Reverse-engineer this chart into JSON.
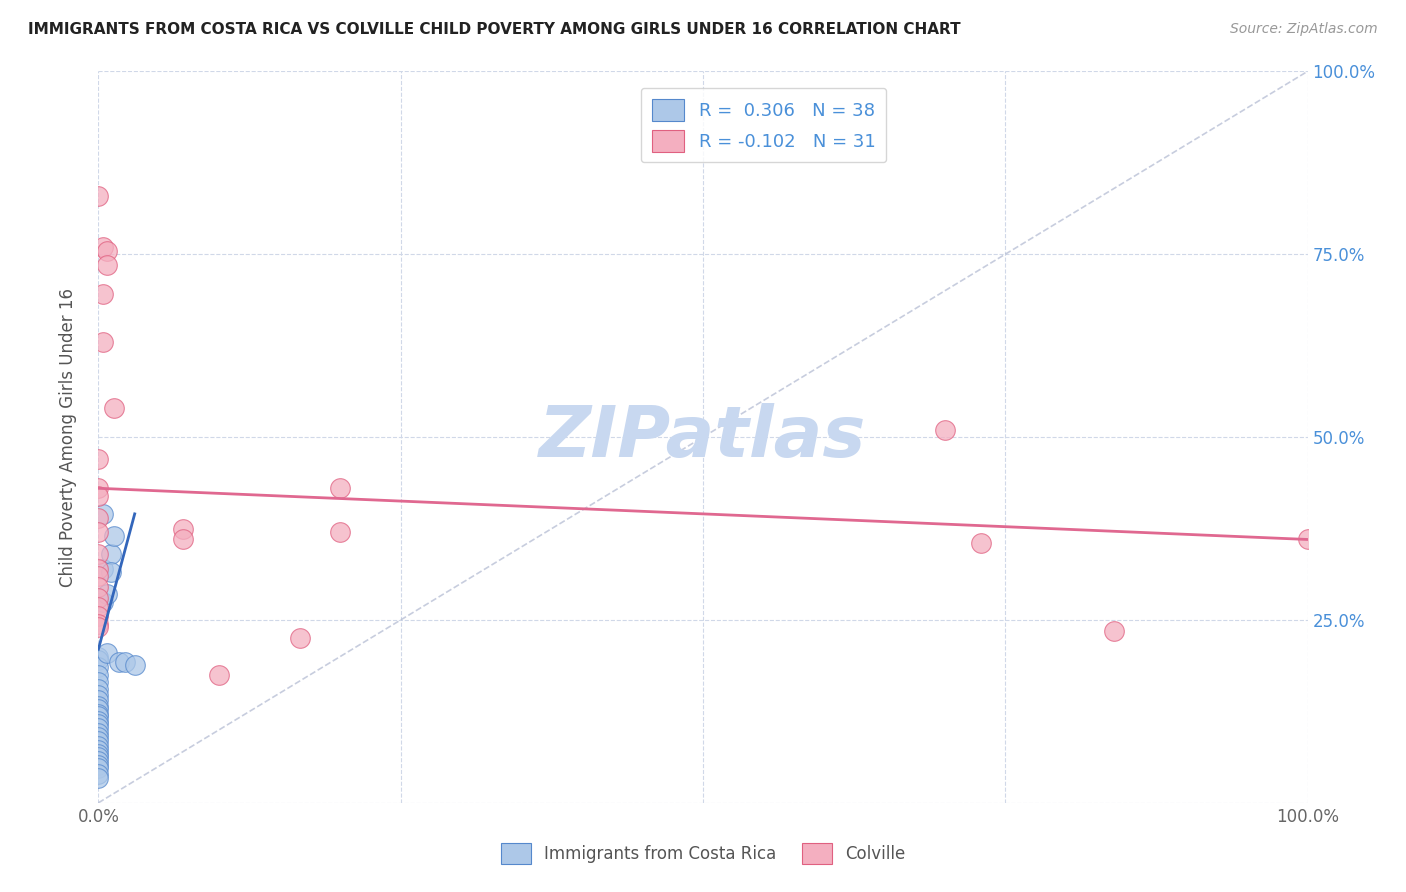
{
  "title": "IMMIGRANTS FROM COSTA RICA VS COLVILLE CHILD POVERTY AMONG GIRLS UNDER 16 CORRELATION CHART",
  "source": "Source: ZipAtlas.com",
  "ylabel": "Child Poverty Among Girls Under 16",
  "legend_labels": [
    "Immigrants from Costa Rica",
    "Colville"
  ],
  "blue_R": 0.306,
  "blue_N": 38,
  "pink_R": -0.102,
  "pink_N": 31,
  "blue_color": "#adc8e8",
  "pink_color": "#f4afc0",
  "blue_edge_color": "#5588cc",
  "pink_edge_color": "#e06080",
  "blue_line_color": "#3366bb",
  "pink_line_color": "#e06890",
  "watermark_color": "#c8d8f0",
  "grid_color": "#d0d8e8",
  "background": "#ffffff",
  "blue_scatter": [
    [
      0.0,
      0.2
    ],
    [
      0.0,
      0.195
    ],
    [
      0.0,
      0.185
    ],
    [
      0.0,
      0.175
    ],
    [
      0.0,
      0.165
    ],
    [
      0.0,
      0.155
    ],
    [
      0.0,
      0.148
    ],
    [
      0.0,
      0.14
    ],
    [
      0.0,
      0.133
    ],
    [
      0.0,
      0.128
    ],
    [
      0.0,
      0.122
    ],
    [
      0.0,
      0.118
    ],
    [
      0.0,
      0.112
    ],
    [
      0.0,
      0.108
    ],
    [
      0.0,
      0.102
    ],
    [
      0.0,
      0.096
    ],
    [
      0.0,
      0.09
    ],
    [
      0.0,
      0.085
    ],
    [
      0.0,
      0.078
    ],
    [
      0.0,
      0.072
    ],
    [
      0.0,
      0.067
    ],
    [
      0.0,
      0.062
    ],
    [
      0.0,
      0.057
    ],
    [
      0.0,
      0.052
    ],
    [
      0.0,
      0.047
    ],
    [
      0.0,
      0.04
    ],
    [
      0.0,
      0.034
    ],
    [
      0.004,
      0.395
    ],
    [
      0.004,
      0.32
    ],
    [
      0.004,
      0.275
    ],
    [
      0.007,
      0.285
    ],
    [
      0.007,
      0.205
    ],
    [
      0.01,
      0.34
    ],
    [
      0.01,
      0.315
    ],
    [
      0.013,
      0.365
    ],
    [
      0.017,
      0.193
    ],
    [
      0.022,
      0.193
    ],
    [
      0.03,
      0.188
    ]
  ],
  "pink_scatter": [
    [
      0.0,
      0.83
    ],
    [
      0.004,
      0.76
    ],
    [
      0.004,
      0.695
    ],
    [
      0.004,
      0.63
    ],
    [
      0.0,
      0.47
    ],
    [
      0.0,
      0.43
    ],
    [
      0.0,
      0.42
    ],
    [
      0.0,
      0.39
    ],
    [
      0.0,
      0.37
    ],
    [
      0.0,
      0.34
    ],
    [
      0.0,
      0.32
    ],
    [
      0.0,
      0.31
    ],
    [
      0.0,
      0.295
    ],
    [
      0.0,
      0.28
    ],
    [
      0.0,
      0.268
    ],
    [
      0.0,
      0.255
    ],
    [
      0.0,
      0.245
    ],
    [
      0.0,
      0.24
    ],
    [
      0.007,
      0.755
    ],
    [
      0.007,
      0.735
    ],
    [
      0.013,
      0.54
    ],
    [
      0.07,
      0.375
    ],
    [
      0.07,
      0.36
    ],
    [
      0.1,
      0.175
    ],
    [
      0.167,
      0.225
    ],
    [
      0.2,
      0.37
    ],
    [
      0.2,
      0.43
    ],
    [
      0.7,
      0.51
    ],
    [
      0.73,
      0.355
    ],
    [
      0.84,
      0.235
    ],
    [
      1.0,
      0.36
    ]
  ],
  "pink_line_x": [
    0.0,
    1.0
  ],
  "pink_line_y": [
    0.43,
    0.36
  ],
  "blue_line_x": [
    0.0,
    0.03
  ],
  "blue_line_y": [
    0.21,
    0.395
  ],
  "diag_line_x": [
    0.0,
    1.0
  ],
  "diag_line_y": [
    0.0,
    1.0
  ],
  "xlim": [
    0.0,
    1.0
  ],
  "ylim": [
    0.0,
    1.0
  ],
  "xtick_positions": [
    0.0,
    0.25,
    0.5,
    0.75,
    1.0
  ],
  "ytick_positions": [
    0.0,
    0.25,
    0.5,
    0.75,
    1.0
  ],
  "right_ytick_labels": [
    "",
    "25.0%",
    "50.0%",
    "75.0%",
    "100.0%"
  ],
  "bottom_xtick_labels": [
    "0.0%",
    "",
    "",
    "",
    "100.0%"
  ]
}
